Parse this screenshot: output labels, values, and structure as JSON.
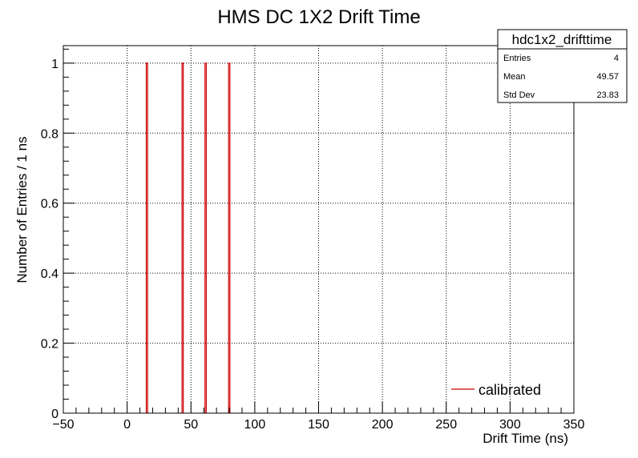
{
  "chart_data": {
    "type": "bar",
    "title": "HMS DC 1X2 Drift Time",
    "xlabel": "Drift Time (ns)",
    "ylabel": "Number of Entries / 1 ns",
    "xlim": [
      -50,
      350
    ],
    "ylim": [
      0,
      1.05
    ],
    "grid": true,
    "x_tick_values": [
      -50,
      0,
      50,
      100,
      150,
      200,
      250,
      300,
      350
    ],
    "x_tick_labels": [
      "−50",
      "0",
      "50",
      "100",
      "150",
      "200",
      "250",
      "300",
      "350"
    ],
    "y_tick_values": [
      0,
      0.2,
      0.4,
      0.6,
      0.8,
      1
    ],
    "y_tick_labels": [
      "0",
      "0.2",
      "0.4",
      "0.6",
      "0.8",
      "1"
    ],
    "series": [
      {
        "name": "calibrated",
        "color": "#cc0000",
        "bin_width": 1,
        "x": [
          15.5,
          43.5,
          61.5,
          80
        ],
        "values": [
          1,
          1,
          1,
          1
        ]
      }
    ],
    "legend": {
      "placement": "bottom-right",
      "entries": [
        "calibrated"
      ]
    },
    "stats": {
      "name": "hdc1x2_drifttime",
      "rows": [
        {
          "label": "Entries",
          "value": "4"
        },
        {
          "label": "Mean",
          "value": "49.57"
        },
        {
          "label": "Std Dev",
          "value": "23.83"
        }
      ]
    }
  }
}
